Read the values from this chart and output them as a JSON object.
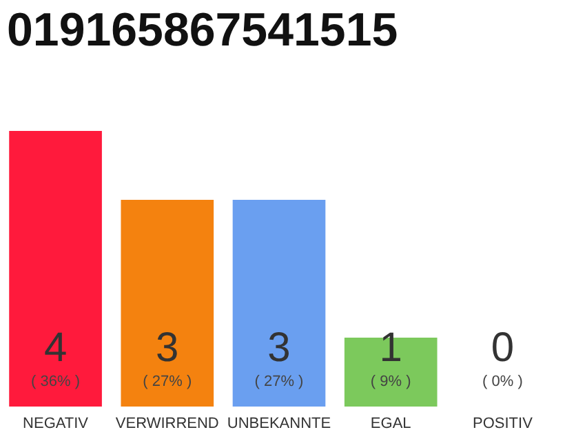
{
  "chart_data": {
    "type": "bar",
    "title": "019165867541515",
    "categories": [
      "NEGATIV",
      "VERWIRREND",
      "UNBEKANNTE",
      "EGAL",
      "POSITIV"
    ],
    "values": [
      4,
      3,
      3,
      1,
      0
    ],
    "colors": [
      "#ff1a3c",
      "#f4820f",
      "#6a9ff0",
      "#7cc95c",
      "#e0e0e0"
    ],
    "ylim": [
      0,
      4
    ],
    "tick_labels": "x",
    "data_labels": true,
    "annotations": [
      "( 36% )",
      "( 27% )",
      "( 27% )",
      "( 9% )",
      "( 0% )"
    ]
  }
}
